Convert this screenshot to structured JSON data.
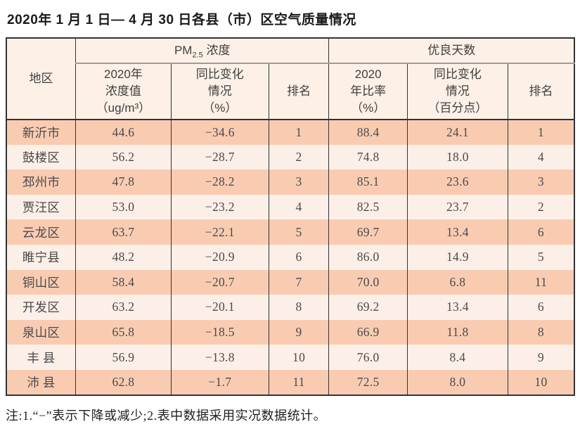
{
  "page": {
    "title": "2020年 1 月 1 日— 4 月 30 日各县（市）区空气质量情况",
    "note": "注:1.“−”表示下降或减少;2.表中数据采用实况数据统计。"
  },
  "colors": {
    "header_bg": "#fdf1e7",
    "row_dark": "#f9ccb2",
    "row_light": "#fcefe8",
    "border_dark": "#333333",
    "border_gray": "#9b9b9b"
  },
  "table": {
    "header": {
      "region": "地区",
      "group_pm": {
        "prefix": "PM",
        "sub": "2.5",
        "suffix": " 浓度"
      },
      "group_days": "优良天数",
      "pm_value": "2020年\n浓度值\n（ug/m³）",
      "pm_change": "同比变化\n情况\n（%）",
      "pm_rank": "排名",
      "days_ratio": "2020\n年比率\n（%）",
      "days_change": "同比变化\n情况\n（百分点）",
      "days_rank": "排名"
    },
    "rows": [
      {
        "region": "新沂市",
        "pm_value": "44.6",
        "pm_change": "−34.6",
        "pm_rank": "1",
        "days_ratio": "88.4",
        "days_change": "24.1",
        "days_rank": "1"
      },
      {
        "region": "鼓楼区",
        "pm_value": "56.2",
        "pm_change": "−28.7",
        "pm_rank": "2",
        "days_ratio": "74.8",
        "days_change": "18.0",
        "days_rank": "4"
      },
      {
        "region": "邳州市",
        "pm_value": "47.8",
        "pm_change": "−28.2",
        "pm_rank": "3",
        "days_ratio": "85.1",
        "days_change": "23.6",
        "days_rank": "3"
      },
      {
        "region": "贾汪区",
        "pm_value": "53.0",
        "pm_change": "−23.2",
        "pm_rank": "4",
        "days_ratio": "82.5",
        "days_change": "23.7",
        "days_rank": "2"
      },
      {
        "region": "云龙区",
        "pm_value": "63.7",
        "pm_change": "−22.1",
        "pm_rank": "5",
        "days_ratio": "69.7",
        "days_change": "13.4",
        "days_rank": "6"
      },
      {
        "region": "睢宁县",
        "pm_value": "48.2",
        "pm_change": "−20.9",
        "pm_rank": "6",
        "days_ratio": "86.0",
        "days_change": "14.9",
        "days_rank": "5"
      },
      {
        "region": "铜山区",
        "pm_value": "58.4",
        "pm_change": "−20.7",
        "pm_rank": "7",
        "days_ratio": "70.0",
        "days_change": "6.8",
        "days_rank": "11"
      },
      {
        "region": "开发区",
        "pm_value": "63.2",
        "pm_change": "−20.1",
        "pm_rank": "8",
        "days_ratio": "69.2",
        "days_change": "13.4",
        "days_rank": "6"
      },
      {
        "region": "泉山区",
        "pm_value": "65.8",
        "pm_change": "−18.5",
        "pm_rank": "9",
        "days_ratio": "66.9",
        "days_change": "11.8",
        "days_rank": "8"
      },
      {
        "region": "丰 县",
        "pm_value": "56.9",
        "pm_change": "−13.8",
        "pm_rank": "10",
        "days_ratio": "76.0",
        "days_change": "8.4",
        "days_rank": "9"
      },
      {
        "region": "沛 县",
        "pm_value": "62.8",
        "pm_change": "−1.7",
        "pm_rank": "11",
        "days_ratio": "72.5",
        "days_change": "8.0",
        "days_rank": "10"
      }
    ]
  }
}
